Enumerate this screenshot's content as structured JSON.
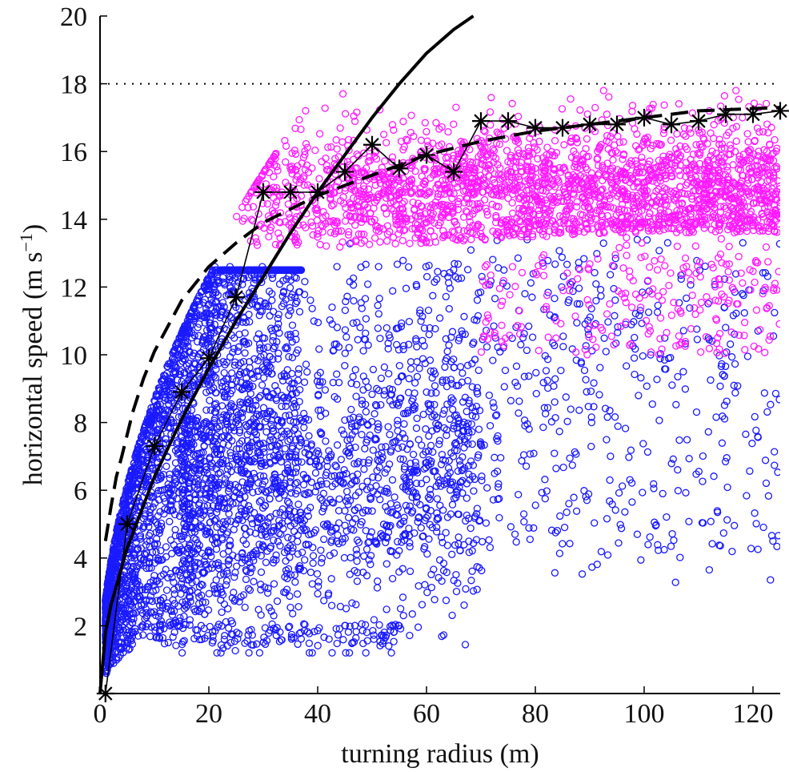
{
  "chart_data": {
    "type": "scatter",
    "title": "",
    "xlabel": "turning radius (m)",
    "ylabel_main": "horizontal speed (m s",
    "ylabel_sup": "−1",
    "ylabel_close": ")",
    "xlim": [
      0,
      125
    ],
    "ylim": [
      0,
      20
    ],
    "xticks": [
      0,
      20,
      40,
      60,
      80,
      100,
      120
    ],
    "yticks": [
      0,
      2,
      4,
      6,
      8,
      10,
      12,
      14,
      16,
      18,
      20
    ],
    "xtick_labels": [
      "0",
      "20",
      "40",
      "60",
      "80",
      "100",
      "120"
    ],
    "ytick_labels": [
      "",
      "2",
      "4",
      "6",
      "8",
      "10",
      "12",
      "14",
      "16",
      "18",
      "20"
    ],
    "grid": false,
    "reference_line": {
      "name": "speed limit",
      "y": 18,
      "style": "dotted"
    },
    "scatter_series": [
      {
        "name": "blue points",
        "color": "#1a1aff"
      },
      {
        "name": "magenta points",
        "color": "#ff1aff"
      }
    ],
    "series": [
      {
        "name": "binned maximum",
        "style": "solid-thin-asterisk",
        "x": [
          1,
          5,
          10,
          15,
          20,
          25,
          30,
          35,
          40,
          45,
          50,
          55,
          60,
          65,
          70,
          75,
          80,
          85,
          90,
          95,
          100,
          105,
          110,
          115,
          120,
          125
        ],
        "y": [
          0,
          5.0,
          7.3,
          8.9,
          9.9,
          11.7,
          14.8,
          14.8,
          14.8,
          15.4,
          16.2,
          15.5,
          15.9,
          15.4,
          16.9,
          16.9,
          16.7,
          16.7,
          16.8,
          16.8,
          17.0,
          16.8,
          16.9,
          17.1,
          17.1,
          17.2
        ]
      },
      {
        "name": "solid fit curve",
        "style": "solid-thick",
        "x": [
          0,
          1,
          2,
          5,
          10,
          15,
          20,
          25,
          30,
          35,
          40,
          45,
          50,
          55,
          60,
          65,
          68.6
        ],
        "y": [
          0,
          1.8,
          2.6,
          4.3,
          6.4,
          8.1,
          9.6,
          11.0,
          12.3,
          13.6,
          14.8,
          15.9,
          17.0,
          18.0,
          18.9,
          19.6,
          20.0
        ]
      },
      {
        "name": "dashed fit curve",
        "style": "dashed-thick",
        "x": [
          1,
          2,
          3,
          4,
          6,
          8,
          10,
          15,
          20,
          25,
          30,
          40,
          50,
          60,
          70,
          80,
          90,
          100,
          110,
          125
        ],
        "y": [
          4.5,
          5.5,
          6.4,
          7.0,
          8.3,
          9.3,
          10.1,
          11.6,
          12.6,
          13.3,
          13.9,
          14.7,
          15.3,
          15.9,
          16.3,
          16.6,
          16.8,
          17.0,
          17.2,
          17.3
        ]
      }
    ]
  }
}
